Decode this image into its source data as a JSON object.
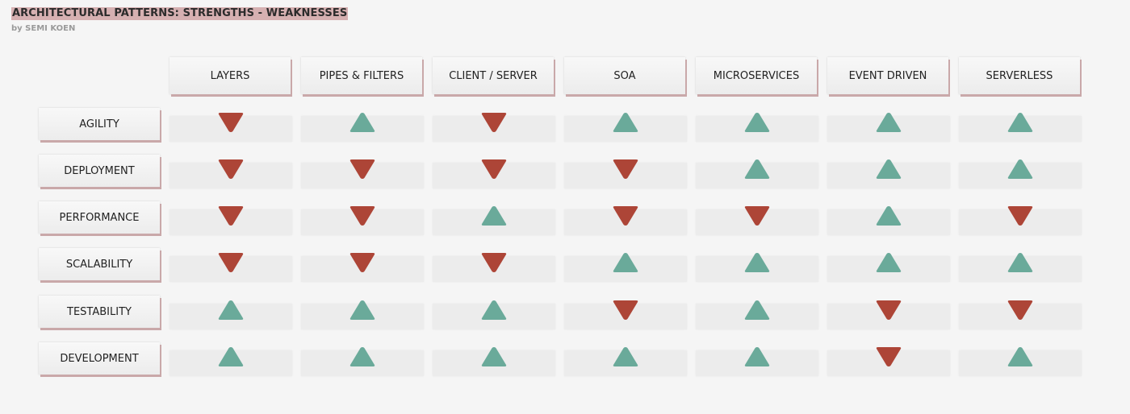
{
  "header": {
    "title": "ARCHITECTURAL PATTERNS: STRENGTHS - WEAKNESSES",
    "byline": "by SEMI KOEN"
  },
  "colors": {
    "strength": "#6aaa9a",
    "weakness": "#ad4537",
    "title_highlight": "#d6b0b1"
  },
  "legend_icons": {
    "strength": "up-triangle-icon",
    "weakness": "down-triangle-icon"
  },
  "columns": [
    "LAYERS",
    "PIPES & FILTERS",
    "CLIENT / SERVER",
    "SOA",
    "MICROSERVICES",
    "EVENT DRIVEN",
    "SERVERLESS"
  ],
  "rows": [
    {
      "label": "AGILITY",
      "values": [
        "down",
        "up",
        "down",
        "up",
        "up",
        "up",
        "up"
      ]
    },
    {
      "label": "DEPLOYMENT",
      "values": [
        "down",
        "down",
        "down",
        "down",
        "up",
        "up",
        "up"
      ]
    },
    {
      "label": "PERFORMANCE",
      "values": [
        "down",
        "down",
        "up",
        "down",
        "down",
        "up",
        "down"
      ]
    },
    {
      "label": "SCALABILITY",
      "values": [
        "down",
        "down",
        "down",
        "up",
        "up",
        "up",
        "up"
      ]
    },
    {
      "label": "TESTABILITY",
      "values": [
        "up",
        "up",
        "up",
        "down",
        "up",
        "down",
        "down"
      ]
    },
    {
      "label": "DEVELOPMENT",
      "values": [
        "up",
        "up",
        "up",
        "up",
        "up",
        "down",
        "up"
      ]
    }
  ]
}
